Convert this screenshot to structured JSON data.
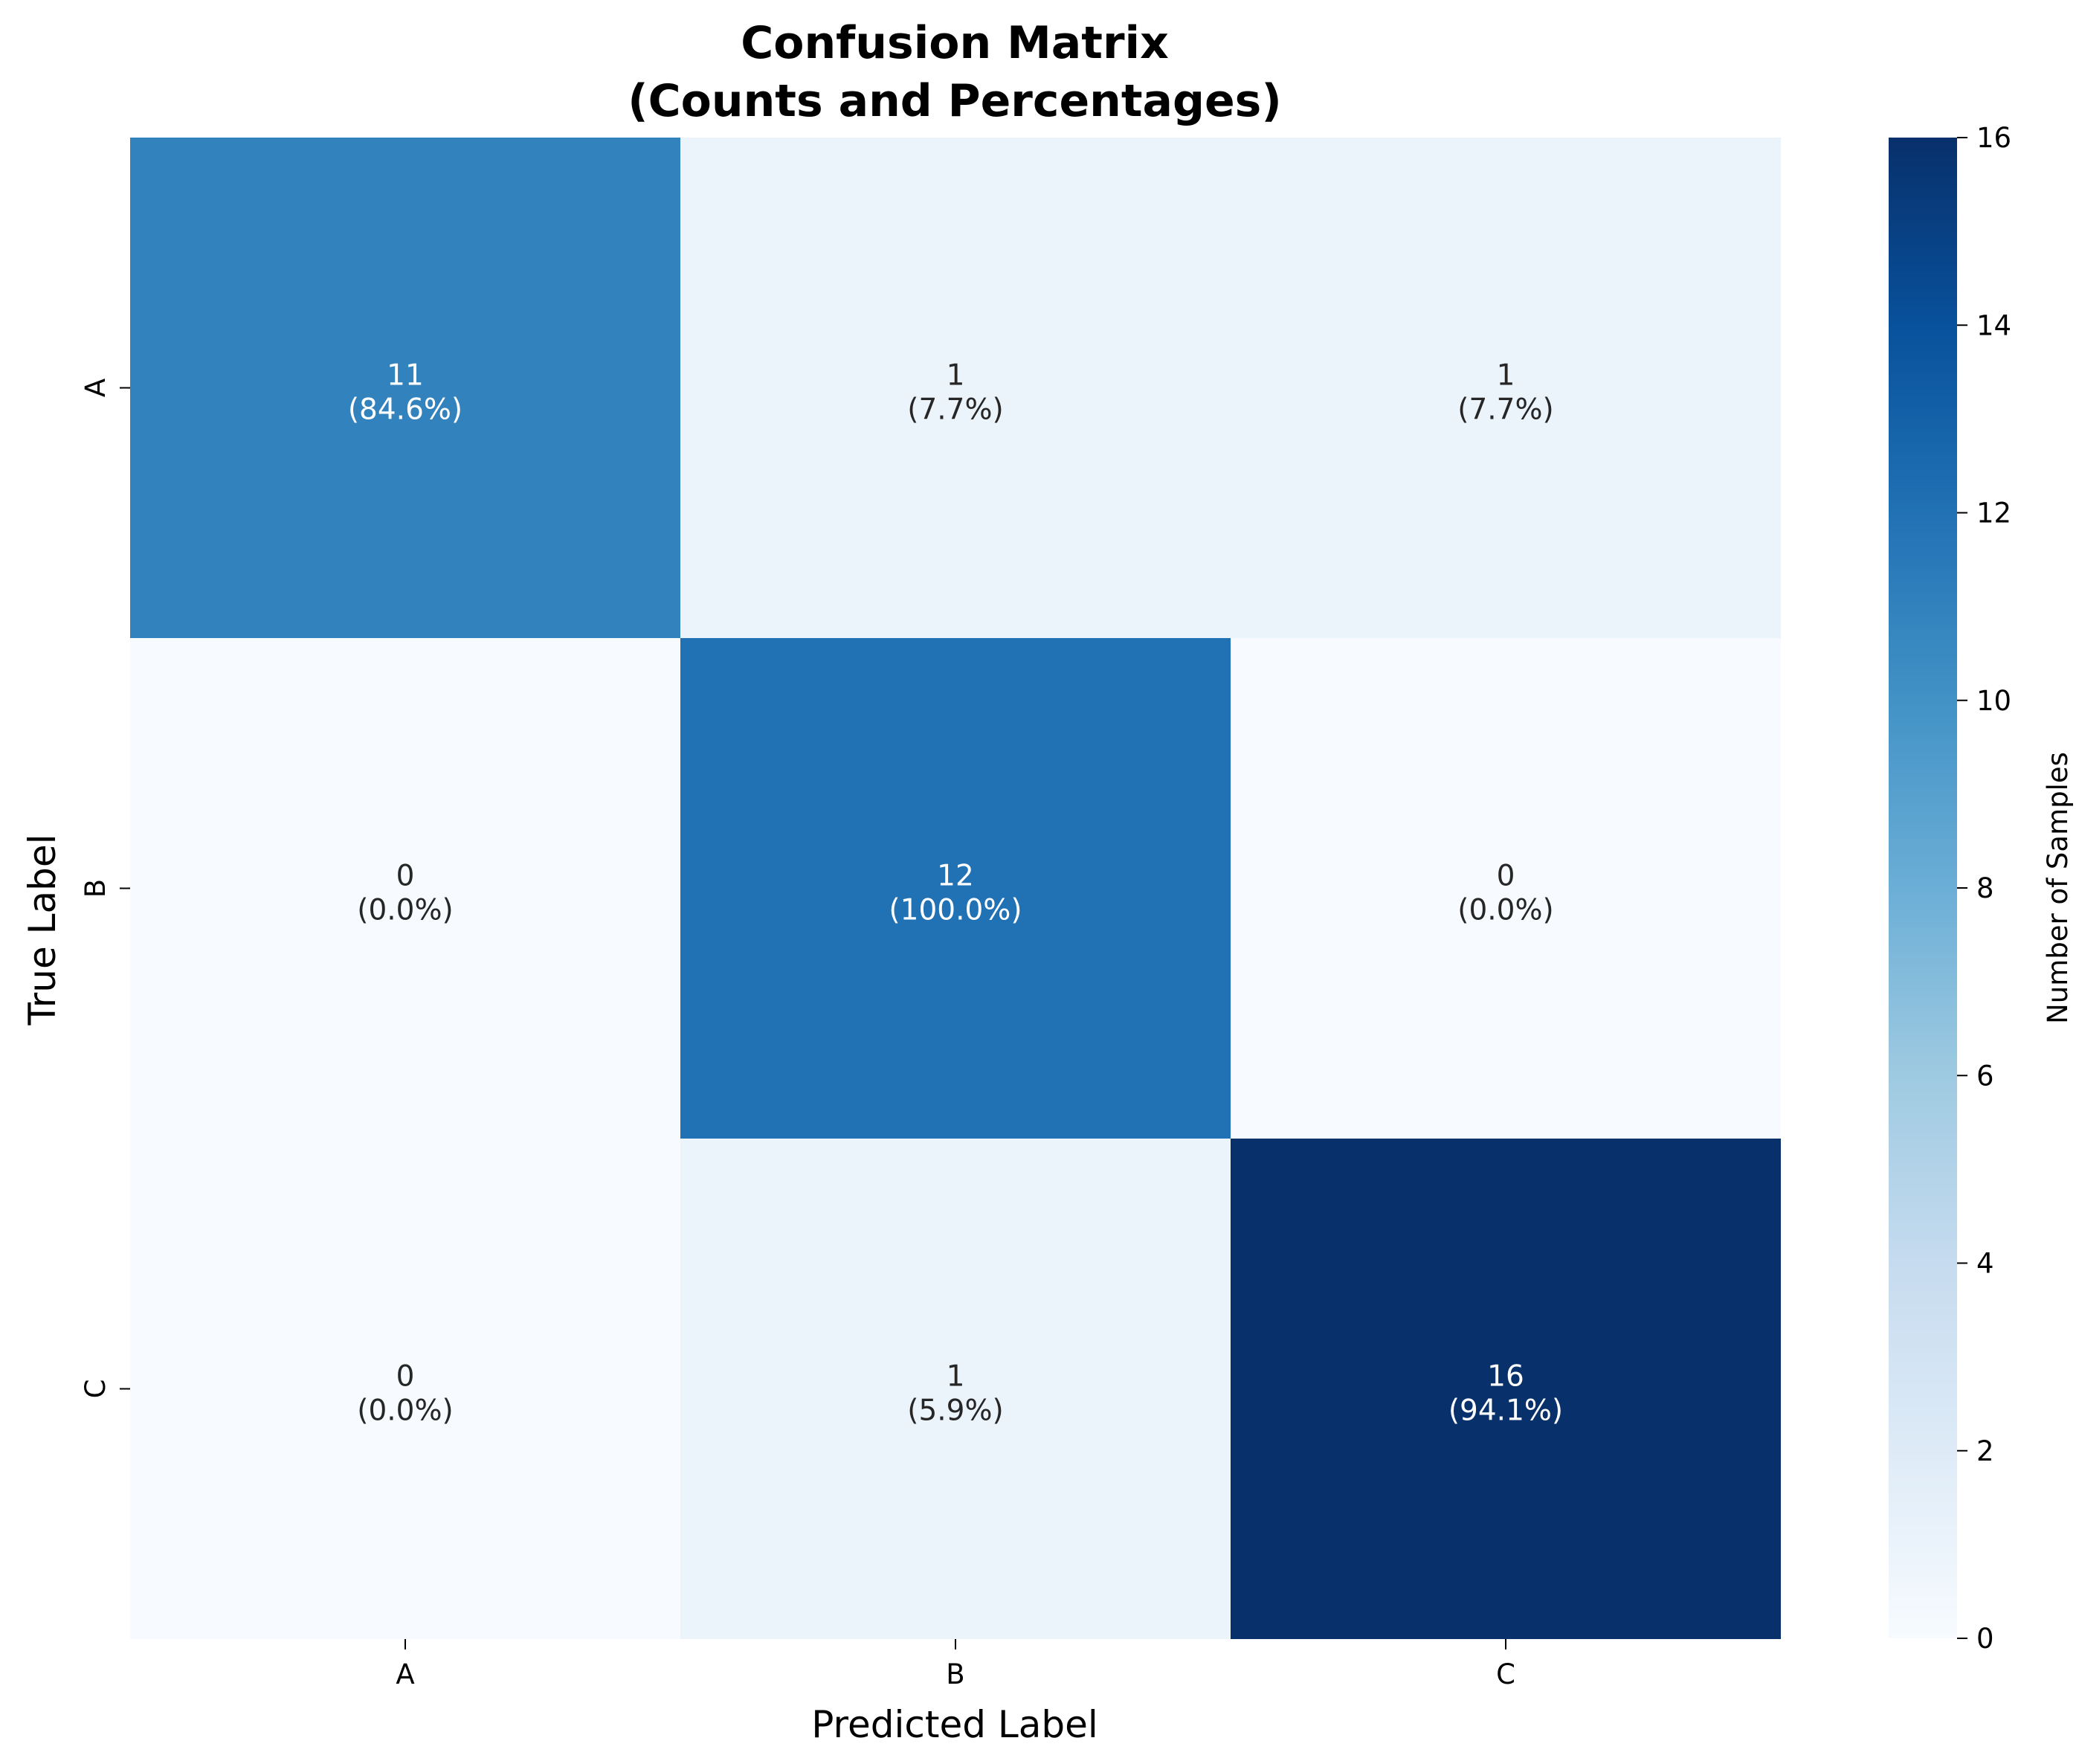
{
  "chart_data": {
    "type": "heatmap",
    "title_lines": [
      "Confusion Matrix",
      "(Counts and Percentages)"
    ],
    "xlabel": "Predicted Label",
    "ylabel": "True Label",
    "x_categories": [
      "A",
      "B",
      "C"
    ],
    "y_categories": [
      "A",
      "B",
      "C"
    ],
    "values": [
      [
        11,
        1,
        1
      ],
      [
        0,
        12,
        0
      ],
      [
        0,
        1,
        16
      ]
    ],
    "percent_labels": [
      [
        "(84.6%)",
        "(7.7%)",
        "(7.7%)"
      ],
      [
        "(0.0%)",
        "(100.0%)",
        "(0.0%)"
      ],
      [
        "(0.0%)",
        "(5.9%)",
        "(94.1%)"
      ]
    ],
    "colorbar": {
      "label": "Number of Samples",
      "range": [
        0,
        16
      ],
      "ticks": [
        0,
        2,
        4,
        6,
        8,
        10,
        12,
        14,
        16
      ],
      "colormap": "Blues"
    }
  }
}
